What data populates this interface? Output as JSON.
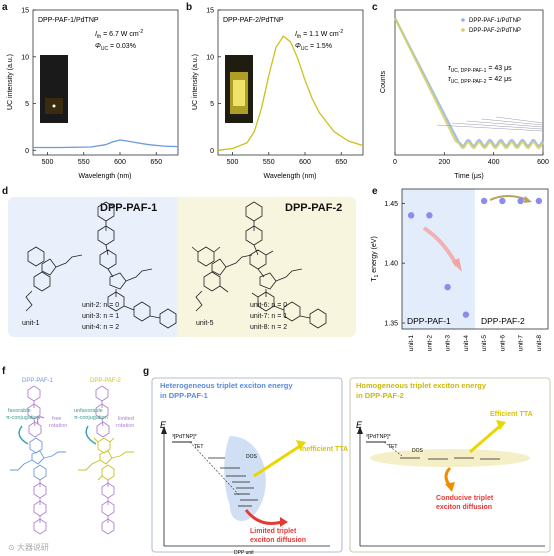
{
  "panels": {
    "a": {
      "letter": "a",
      "title": "DPP-PAF-1/PdTNP",
      "ith": "I",
      "ith_sub": "th",
      "ith_val": " = 6.7 W cm",
      "ith_sup": "-2",
      "phi": "Φ",
      "phi_sub": "UC",
      "phi_val": " = 0.03%",
      "ylabel": "UC intensity (a.u.)",
      "xlabel": "Wavelength (nm)",
      "xticks": [
        "500",
        "550",
        "600",
        "650"
      ],
      "yticks": [
        "0",
        "5",
        "10",
        "15"
      ]
    },
    "b": {
      "letter": "b",
      "title": "DPP-PAF-2/PdTNP",
      "ith": "I",
      "ith_sub": "th",
      "ith_val": " = 1.1 W cm",
      "ith_sup": "-2",
      "phi": "Φ",
      "phi_sub": "UC",
      "phi_val": " = 1.5%",
      "ylabel": "UC intensity (a.u.)",
      "xlabel": "Wavelength (nm)",
      "xticks": [
        "500",
        "550",
        "600",
        "650"
      ],
      "yticks": [
        "0",
        "5",
        "10",
        "15"
      ]
    },
    "c": {
      "letter": "c",
      "legend": [
        "DPP-PAF-1/PdTNP",
        "DPP-PAF-2/PdTNP"
      ],
      "tau1": "τ",
      "tau1_sub": "UC, DPP-PAF-1",
      "tau1_val": " = 43 μs",
      "tau2": "τ",
      "tau2_sub": "UC, DPP-PAF-2",
      "tau2_val": " = 42 μs",
      "ylabel": "Counts",
      "xlabel": "Time (μs)",
      "xticks": [
        "0",
        "200",
        "400",
        "600"
      ]
    },
    "d": {
      "letter": "d",
      "title1": "DPP-PAF-1",
      "title2": "DPP-PAF-2",
      "unit1": "unit-1",
      "unit2": "unit-2: n = 0",
      "unit3": "unit-3: n = 1",
      "unit4": "unit-4: n = 2",
      "unit5": "unit-5",
      "unit6": "unit-6: n = 0",
      "unit7": "unit-7: n = 1",
      "unit8": "unit-8: n = 2"
    },
    "e": {
      "letter": "e",
      "ylabel": "T",
      "ylabel_sub": "1",
      "ylabel_rest": " energy (eV)",
      "yticks": [
        "1.35",
        "1.40",
        "1.45"
      ],
      "label1": "DPP-PAF-1",
      "label2": "DPP-PAF-2",
      "xticks": [
        "unit-1",
        "unit-2",
        "unit-3",
        "unit-4",
        "unit-5",
        "unit-6",
        "unit-7",
        "unit-8"
      ]
    },
    "f": {
      "letter": "f",
      "title1": "DPP-PAF-1",
      "title2": "DPP-PAF-2",
      "ann1a": "favorable",
      "ann1b": "π-conjugation",
      "ann1c": "free",
      "ann1d": "rotation",
      "ann2a": "unfavorable",
      "ann2b": "π-conjugation",
      "ann2c": "limited",
      "ann2d": "rotation",
      "watermark": "⊙ 大器说研"
    },
    "g": {
      "letter": "g",
      "title1a": "Heterogeneous triplet exciton energy",
      "title1b": "in DPP-PAF-1",
      "title2a": "Homogeneous triplet exciton energy",
      "title2b": "in DPP-PAF-2",
      "E": "E",
      "pdtnp": "³[PdTNP]*",
      "tet": "TET",
      "dos": "DOS",
      "inefficient": "Inefficient TTA",
      "efficient": "Efficient TTA",
      "limited1": "Limited triplet",
      "limited2": "exciton diffusion",
      "conducive1": "Conducive triplet",
      "conducive2": "exciton diffusion",
      "dppunit": "DPP unit"
    }
  },
  "chart_data": [
    {
      "type": "line",
      "panel": "a",
      "title": "DPP-PAF-1/PdTNP",
      "xlabel": "Wavelength (nm)",
      "ylabel": "UC intensity (a.u.)",
      "xlim": [
        480,
        680
      ],
      "ylim": [
        -0.5,
        15
      ],
      "series": [
        {
          "color": "#6a9ae0",
          "x": [
            480,
            520,
            560,
            580,
            590,
            600,
            610,
            620,
            640,
            660,
            680
          ],
          "y": [
            0.3,
            0.3,
            0.35,
            0.6,
            0.9,
            1.1,
            1.0,
            0.85,
            0.6,
            0.45,
            0.4
          ]
        }
      ]
    },
    {
      "type": "line",
      "panel": "b",
      "title": "DPP-PAF-2/PdTNP",
      "xlabel": "Wavelength (nm)",
      "ylabel": "UC intensity (a.u.)",
      "xlim": [
        480,
        680
      ],
      "ylim": [
        -0.5,
        15
      ],
      "series": [
        {
          "color": "#c9c21e",
          "x": [
            480,
            500,
            520,
            530,
            540,
            550,
            560,
            570,
            580,
            590,
            600,
            610,
            620,
            640,
            660,
            680
          ],
          "y": [
            0.0,
            0.2,
            0.8,
            2.0,
            4.5,
            8.0,
            11.0,
            12.2,
            11.6,
            9.8,
            7.5,
            5.5,
            4.0,
            2.0,
            1.0,
            0.5
          ]
        }
      ]
    },
    {
      "type": "scatter",
      "panel": "c",
      "xlabel": "Time (μs)",
      "ylabel": "Counts",
      "xlim": [
        0,
        600
      ],
      "series": [
        {
          "name": "DPP-PAF-1/PdTNP",
          "color": "#8db4ea"
        },
        {
          "name": "DPP-PAF-2/PdTNP",
          "color": "#d4cf63"
        }
      ]
    },
    {
      "type": "scatter",
      "panel": "e",
      "ylabel": "T1 energy (eV)",
      "categories": [
        "unit-1",
        "unit-2",
        "unit-3",
        "unit-4",
        "unit-5",
        "unit-6",
        "unit-7",
        "unit-8"
      ],
      "values": [
        1.44,
        1.44,
        1.38,
        1.357,
        1.452,
        1.452,
        1.452,
        1.452
      ],
      "ylim": [
        1.345,
        1.462
      ]
    }
  ],
  "colors": {
    "blue": "#6a9ae0",
    "yellow": "#c9c21e",
    "dot": "#8a8cf0",
    "bluebg": "#e3ecfa",
    "yellowbg": "#f7f4dc",
    "arrow_red": "#e53935",
    "arrow_yellow": "#f2d400",
    "purple": "#b080d0"
  }
}
